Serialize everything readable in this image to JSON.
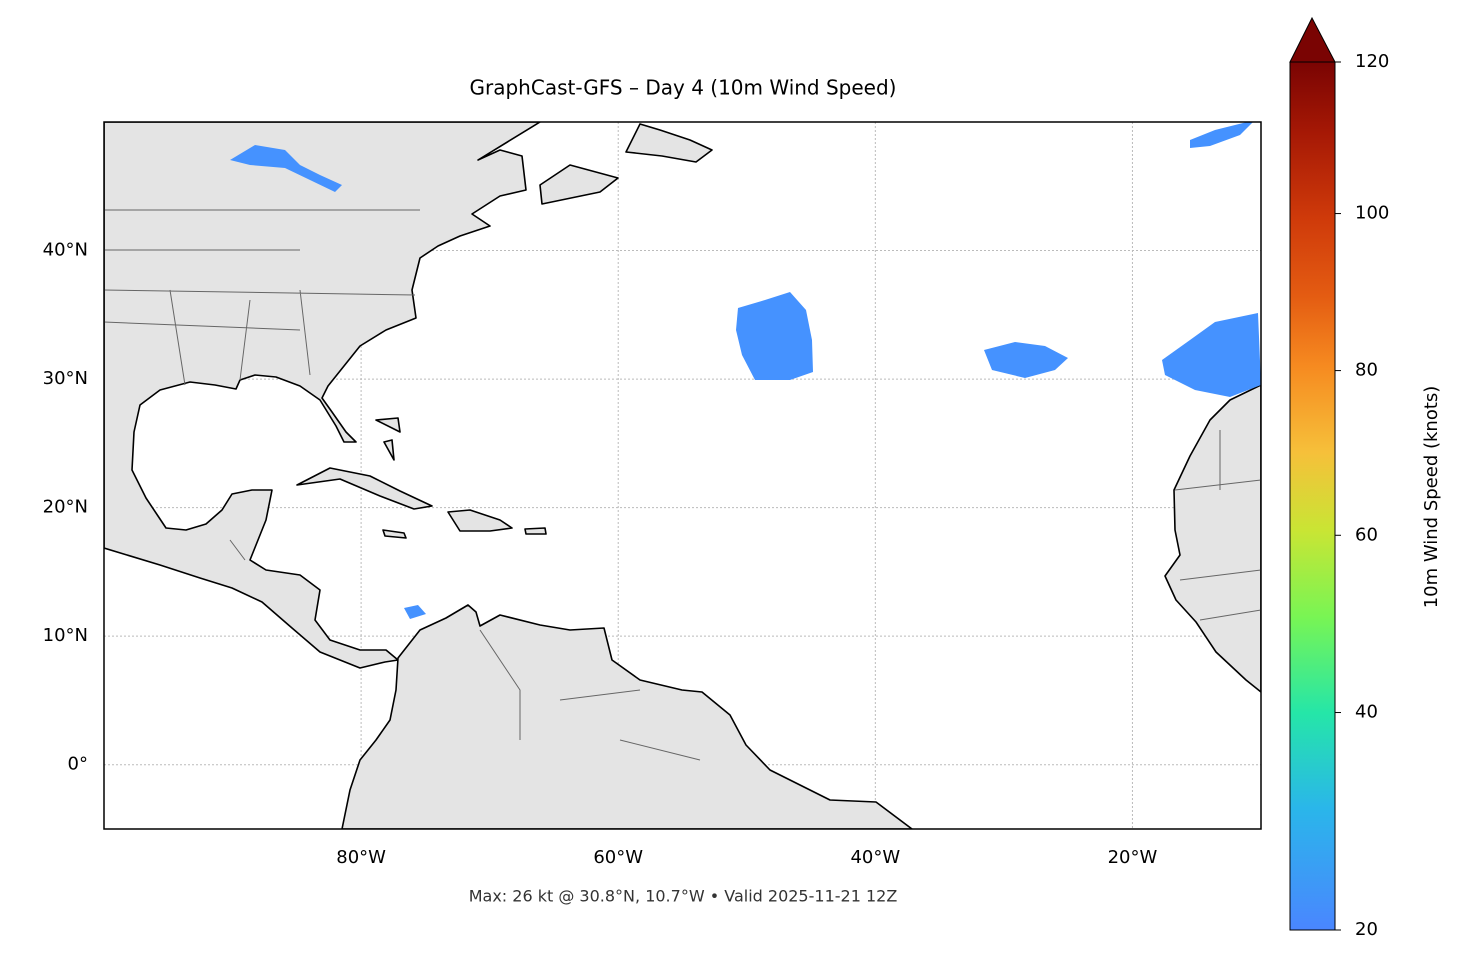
{
  "chart_data": {
    "type": "map",
    "title": "GraphCast-GFS – Day 4 (10m Wind Speed)",
    "footer": "Max: 26 kt @ 30.8°N, 10.7°W • Valid 2025-11-21 12Z",
    "xlim": [
      -100,
      -10
    ],
    "ylim": [
      -5,
      50
    ],
    "xticks": [
      {
        "value": -80,
        "label": "80°W"
      },
      {
        "value": -60,
        "label": "60°W"
      },
      {
        "value": -40,
        "label": "40°W"
      },
      {
        "value": -20,
        "label": "20°W"
      }
    ],
    "yticks": [
      {
        "value": 0,
        "label": "0°"
      },
      {
        "value": 10,
        "label": "10°N"
      },
      {
        "value": 20,
        "label": "20°N"
      },
      {
        "value": 30,
        "label": "30°N"
      },
      {
        "value": 40,
        "label": "40°N"
      }
    ],
    "grid": true,
    "colorbar": {
      "label": "10m Wind Speed (knots)",
      "clim": [
        20,
        120
      ],
      "ticks": [
        20,
        40,
        60,
        80,
        100,
        120
      ],
      "norm": "power",
      "gamma": 0.86,
      "extend": "max"
    }
  }
}
